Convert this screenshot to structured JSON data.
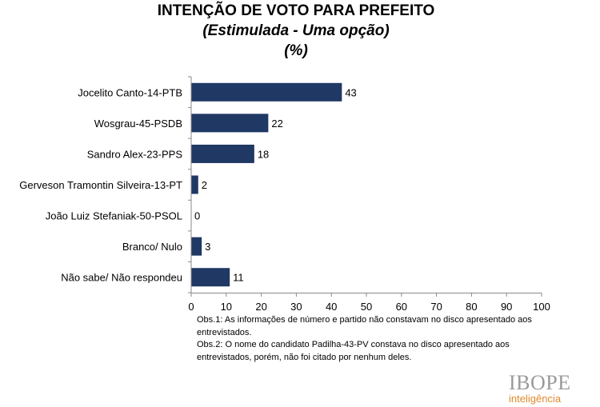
{
  "header": {
    "title": "INTENÇÃO DE VOTO PARA PREFEITO",
    "subtitle": "(Estimulada - Uma opção)",
    "unit": "(%)"
  },
  "chart_data": {
    "type": "bar",
    "orientation": "horizontal",
    "title": "INTENÇÃO DE VOTO PARA PREFEITO",
    "subtitle": "(Estimulada - Uma opção)",
    "ylabel": "",
    "xlabel": "",
    "xlim": [
      0,
      100
    ],
    "xticks": [
      0,
      10,
      20,
      30,
      40,
      50,
      60,
      70,
      80,
      90,
      100
    ],
    "categories": [
      "Jocelito Canto-14-PTB",
      "Wosgrau-45-PSDB",
      "Sandro Alex-23-PPS",
      "Gerveson Tramontin Silveira-13-PT",
      "João Luiz Stefaniak-50-PSOL",
      "Branco/ Nulo",
      "Não sabe/ Não respondeu"
    ],
    "values": [
      43,
      22,
      18,
      2,
      0,
      3,
      11
    ],
    "bar_color": "#1f3864",
    "grid": false
  },
  "notes": {
    "obs1": "Obs.1: As informações de número e partido não constavam no disco apresentado aos entrevistados.",
    "obs2": "Obs.2: O nome do candidato Padilha-43-PV constava no disco apresentado aos entrevistados, porém, não foi citado por nenhum deles."
  },
  "logo": {
    "main": "IBOPE",
    "sub": "inteligência"
  }
}
